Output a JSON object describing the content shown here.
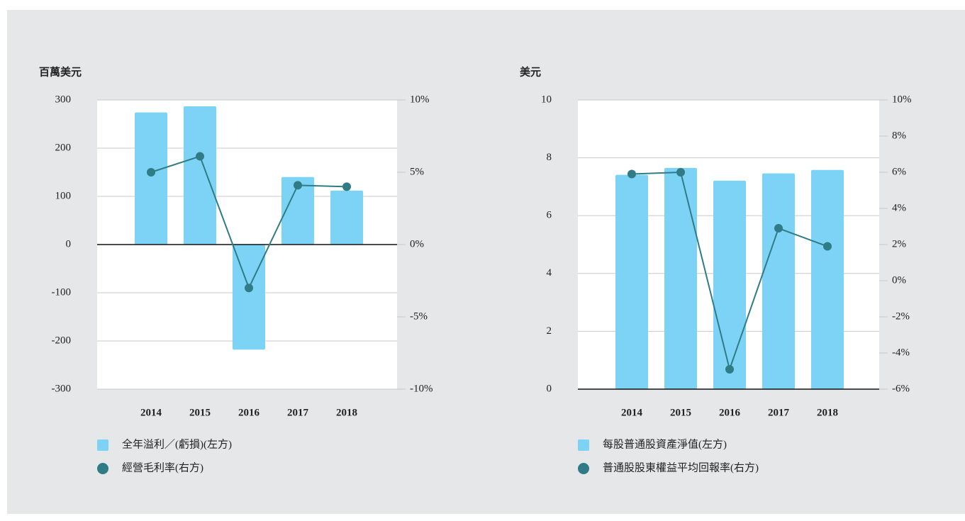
{
  "chart_data": [
    {
      "type": "bar_line",
      "y_axis_label": "百萬美元",
      "categories": [
        "2014",
        "2015",
        "2016",
        "2017",
        "2018"
      ],
      "series": [
        {
          "name": "全年溢利／(虧損)(左方)",
          "color": "#7dd3f5",
          "type": "bar",
          "values": [
            274,
            287,
            -218,
            140,
            112
          ]
        },
        {
          "name": "經營毛利率(右方)",
          "color": "#2f7c86",
          "type": "line",
          "axis": "y2",
          "values": [
            5.0,
            6.1,
            -3.0,
            4.1,
            4.0
          ]
        }
      ],
      "ylim": [
        -300,
        300
      ],
      "yticks": [
        -300,
        -200,
        -100,
        0,
        100,
        200,
        300
      ],
      "y2lim": [
        -10,
        10
      ],
      "y2ticks": [
        {
          "value": -10,
          "label": "-10%"
        },
        {
          "value": -5,
          "label": "-5%"
        },
        {
          "value": 0,
          "label": "0%"
        },
        {
          "value": 5,
          "label": "5%"
        },
        {
          "value": 10,
          "label": "10%"
        }
      ],
      "grid": true
    },
    {
      "type": "bar_line",
      "y_axis_label": "美元",
      "categories": [
        "2014",
        "2015",
        "2016",
        "2017",
        "2018"
      ],
      "series": [
        {
          "name": "每股普通股資產淨值(左方)",
          "color": "#7dd3f5",
          "type": "bar",
          "values": [
            7.41,
            7.65,
            7.21,
            7.46,
            7.58
          ]
        },
        {
          "name": "普通股股東權益平均回報率(右方)",
          "color": "#2f7c86",
          "type": "line",
          "axis": "y2",
          "values": [
            5.9,
            6.0,
            -4.9,
            2.9,
            1.9
          ]
        }
      ],
      "ylim": [
        0,
        10
      ],
      "yticks": [
        0,
        2,
        4,
        6,
        8,
        10
      ],
      "y2lim": [
        -6,
        10
      ],
      "y2ticks": [
        {
          "value": -6,
          "label": "-6%"
        },
        {
          "value": -4,
          "label": "-4%"
        },
        {
          "value": -2,
          "label": "-2%"
        },
        {
          "value": 0,
          "label": "0%"
        },
        {
          "value": 2,
          "label": "2%"
        },
        {
          "value": 4,
          "label": "4%"
        },
        {
          "value": 6,
          "label": "6%"
        },
        {
          "value": 8,
          "label": "8%"
        },
        {
          "value": 10,
          "label": "10%"
        }
      ],
      "grid": true
    }
  ]
}
